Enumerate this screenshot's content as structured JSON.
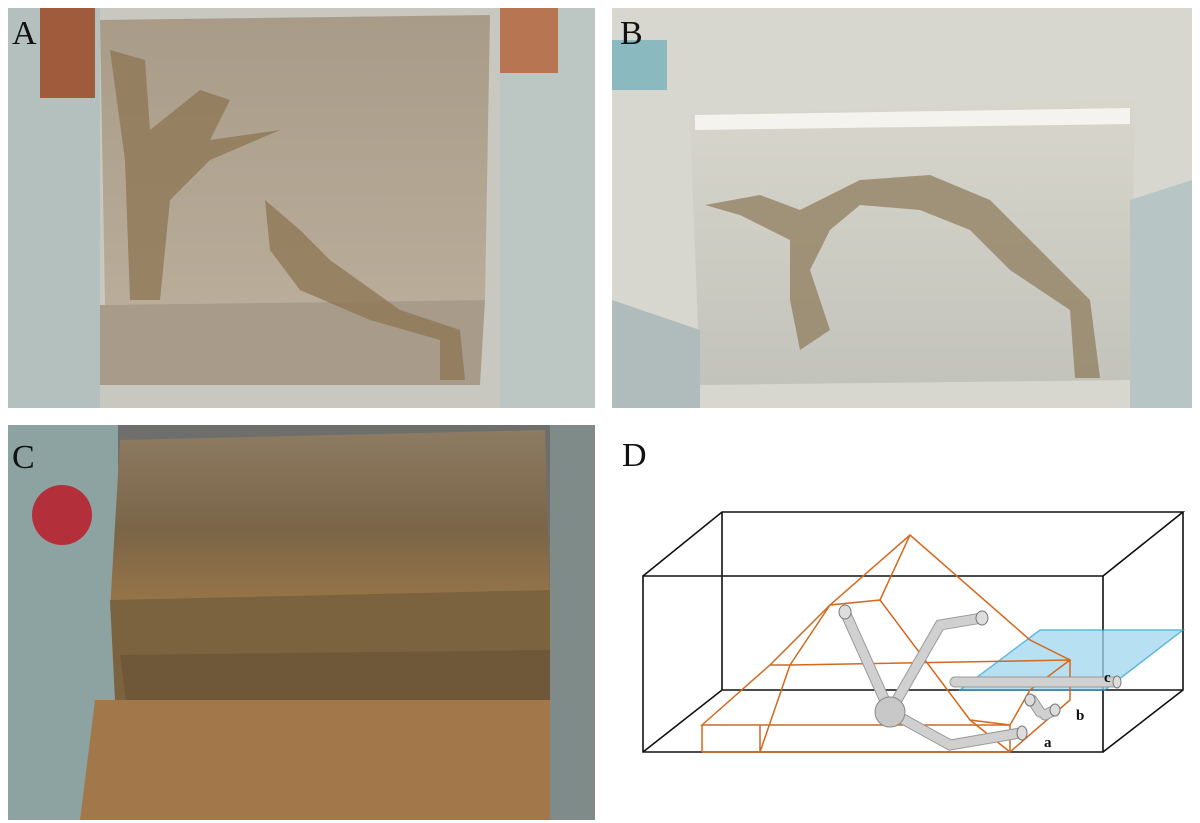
{
  "panels": [
    {
      "label": "A"
    },
    {
      "label": "B"
    },
    {
      "label": "C"
    },
    {
      "label": "D"
    }
  ],
  "diagram": {
    "labels": [
      "a",
      "b",
      "c"
    ]
  }
}
